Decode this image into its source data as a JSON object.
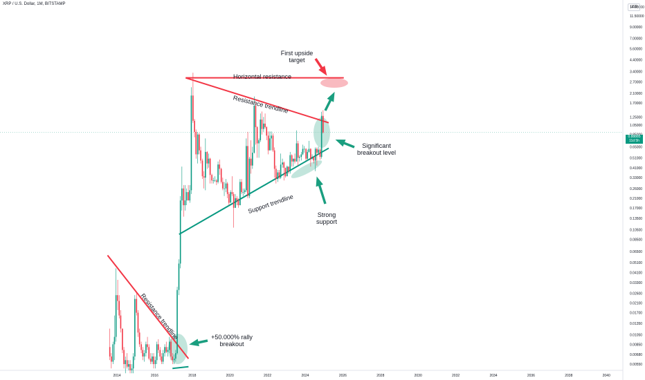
{
  "header": {
    "title": "XRP / U.S. Dollar, 1M, BITSTAMP",
    "currency": "USD"
  },
  "last_price": {
    "value": "0.88885",
    "countdown": "11d 5h"
  },
  "chart_data": {
    "type": "candlestick",
    "title": "XRP / U.S. Dollar, 1M, BITSTAMP",
    "scale": "log",
    "x_range": [
      2013.5,
      2040.5
    ],
    "y_range": [
      0.0045,
      20
    ],
    "price_ticks": [
      "14.00000",
      "11.50000",
      "9.00000",
      "7.00000",
      "5.60000",
      "4.40000",
      "3.40000",
      "2.70000",
      "2.10000",
      "1.70000",
      "1.25000",
      "1.05000",
      "0.85000",
      "0.65000",
      "0.51000",
      "0.41000",
      "0.33000",
      "0.26000",
      "0.21000",
      "0.17000",
      "0.13500",
      "0.10500",
      "0.08500",
      "0.06500",
      "0.05100",
      "0.04100",
      "0.03300",
      "0.02600",
      "0.02100",
      "0.01700",
      "0.01350",
      "0.01050",
      "0.00850",
      "0.00680",
      "0.00550"
    ],
    "time_ticks": [
      "2014",
      "2016",
      "2018",
      "2020",
      "2022",
      "2024",
      "2026",
      "2028",
      "2030",
      "2032",
      "2034",
      "2036",
      "2038",
      "2040"
    ],
    "candles": [
      [
        2013.62,
        0.008,
        0.012,
        0.006,
        0.0065
      ],
      [
        2013.7,
        0.0065,
        0.007,
        0.005,
        0.0058
      ],
      [
        2013.79,
        0.0058,
        0.009,
        0.0055,
        0.0085
      ],
      [
        2013.87,
        0.0085,
        0.016,
        0.006,
        0.01
      ],
      [
        2013.95,
        0.01,
        0.045,
        0.009,
        0.025
      ],
      [
        2014.04,
        0.025,
        0.035,
        0.018,
        0.022
      ],
      [
        2014.12,
        0.022,
        0.025,
        0.015,
        0.016
      ],
      [
        2014.2,
        0.016,
        0.018,
        0.011,
        0.012
      ],
      [
        2014.29,
        0.012,
        0.012,
        0.007,
        0.0075
      ],
      [
        2014.37,
        0.0075,
        0.008,
        0.005,
        0.0055
      ],
      [
        2014.45,
        0.0055,
        0.0065,
        0.0045,
        0.006
      ],
      [
        2014.54,
        0.006,
        0.007,
        0.005,
        0.0052
      ],
      [
        2014.62,
        0.0052,
        0.006,
        0.0048,
        0.0055
      ],
      [
        2014.7,
        0.0055,
        0.006,
        0.0045,
        0.0048
      ],
      [
        2014.79,
        0.0048,
        0.0055,
        0.0045,
        0.005
      ],
      [
        2014.87,
        0.005,
        0.007,
        0.0045,
        0.0065
      ],
      [
        2014.95,
        0.0065,
        0.025,
        0.006,
        0.023
      ],
      [
        2015.04,
        0.023,
        0.026,
        0.016,
        0.017
      ],
      [
        2015.12,
        0.017,
        0.018,
        0.01,
        0.011
      ],
      [
        2015.2,
        0.011,
        0.012,
        0.008,
        0.0085
      ],
      [
        2015.29,
        0.0085,
        0.009,
        0.007,
        0.0075
      ],
      [
        2015.37,
        0.0075,
        0.008,
        0.006,
        0.0065
      ],
      [
        2015.45,
        0.0065,
        0.0075,
        0.0058,
        0.007
      ],
      [
        2015.54,
        0.007,
        0.009,
        0.0065,
        0.0085
      ],
      [
        2015.62,
        0.0085,
        0.01,
        0.0075,
        0.008
      ],
      [
        2015.7,
        0.008,
        0.0085,
        0.006,
        0.0062
      ],
      [
        2015.79,
        0.0062,
        0.007,
        0.0055,
        0.0058
      ],
      [
        2015.87,
        0.0058,
        0.007,
        0.0055,
        0.0065
      ],
      [
        2015.95,
        0.0065,
        0.007,
        0.005,
        0.0055
      ],
      [
        2016.04,
        0.0055,
        0.0065,
        0.005,
        0.006
      ],
      [
        2016.12,
        0.006,
        0.009,
        0.0055,
        0.0085
      ],
      [
        2016.2,
        0.0085,
        0.0095,
        0.007,
        0.0075
      ],
      [
        2016.29,
        0.0075,
        0.008,
        0.006,
        0.0065
      ],
      [
        2016.37,
        0.0065,
        0.007,
        0.0055,
        0.0058
      ],
      [
        2016.45,
        0.0058,
        0.0075,
        0.0055,
        0.007
      ],
      [
        2016.54,
        0.007,
        0.0085,
        0.0065,
        0.008
      ],
      [
        2016.62,
        0.008,
        0.009,
        0.007,
        0.0072
      ],
      [
        2016.7,
        0.0072,
        0.008,
        0.0065,
        0.0075
      ],
      [
        2016.79,
        0.0075,
        0.01,
        0.007,
        0.009
      ],
      [
        2016.87,
        0.009,
        0.0095,
        0.006,
        0.0065
      ],
      [
        2016.95,
        0.0065,
        0.007,
        0.0055,
        0.006
      ],
      [
        2017.04,
        0.006,
        0.0068,
        0.0055,
        0.0062
      ],
      [
        2017.12,
        0.0062,
        0.0075,
        0.0058,
        0.007
      ],
      [
        2017.2,
        0.007,
        0.03,
        0.0068,
        0.028
      ],
      [
        2017.29,
        0.028,
        0.055,
        0.025,
        0.05
      ],
      [
        2017.37,
        0.05,
        0.22,
        0.045,
        0.2
      ],
      [
        2017.45,
        0.2,
        0.42,
        0.16,
        0.26
      ],
      [
        2017.54,
        0.26,
        0.28,
        0.14,
        0.18
      ],
      [
        2017.62,
        0.18,
        0.28,
        0.16,
        0.2
      ],
      [
        2017.7,
        0.2,
        0.26,
        0.18,
        0.24
      ],
      [
        2017.79,
        0.24,
        0.28,
        0.2,
        0.2
      ],
      [
        2017.87,
        0.2,
        0.28,
        0.19,
        0.25
      ],
      [
        2017.95,
        0.25,
        2.4,
        0.23,
        2.0
      ],
      [
        2018.04,
        2.0,
        3.3,
        1.1,
        1.15
      ],
      [
        2018.12,
        1.15,
        1.2,
        0.8,
        0.9
      ],
      [
        2018.2,
        0.9,
        0.95,
        0.5,
        0.55
      ],
      [
        2018.29,
        0.55,
        0.9,
        0.45,
        0.85
      ],
      [
        2018.37,
        0.85,
        0.88,
        0.55,
        0.6
      ],
      [
        2018.45,
        0.6,
        0.65,
        0.45,
        0.48
      ],
      [
        2018.54,
        0.48,
        0.5,
        0.32,
        0.34
      ],
      [
        2018.62,
        0.34,
        0.38,
        0.26,
        0.33
      ],
      [
        2018.7,
        0.33,
        0.78,
        0.25,
        0.58
      ],
      [
        2018.79,
        0.58,
        0.59,
        0.4,
        0.45
      ],
      [
        2018.87,
        0.45,
        0.56,
        0.41,
        0.5
      ],
      [
        2018.95,
        0.5,
        0.51,
        0.29,
        0.35
      ],
      [
        2019.04,
        0.35,
        0.36,
        0.29,
        0.31
      ],
      [
        2019.12,
        0.31,
        0.33,
        0.29,
        0.31
      ],
      [
        2019.2,
        0.31,
        0.34,
        0.3,
        0.31
      ],
      [
        2019.29,
        0.31,
        0.32,
        0.28,
        0.3
      ],
      [
        2019.37,
        0.3,
        0.47,
        0.29,
        0.44
      ],
      [
        2019.45,
        0.44,
        0.49,
        0.35,
        0.4
      ],
      [
        2019.54,
        0.4,
        0.41,
        0.29,
        0.3
      ],
      [
        2019.62,
        0.3,
        0.33,
        0.25,
        0.26
      ],
      [
        2019.7,
        0.26,
        0.3,
        0.22,
        0.26
      ],
      [
        2019.79,
        0.26,
        0.32,
        0.24,
        0.29
      ],
      [
        2019.87,
        0.29,
        0.3,
        0.21,
        0.23
      ],
      [
        2019.95,
        0.23,
        0.24,
        0.18,
        0.19
      ],
      [
        2020.04,
        0.19,
        0.25,
        0.19,
        0.24
      ],
      [
        2020.12,
        0.24,
        0.34,
        0.22,
        0.23
      ],
      [
        2020.2,
        0.23,
        0.24,
        0.11,
        0.17
      ],
      [
        2020.29,
        0.17,
        0.23,
        0.17,
        0.21
      ],
      [
        2020.37,
        0.21,
        0.22,
        0.18,
        0.2
      ],
      [
        2020.45,
        0.2,
        0.21,
        0.17,
        0.18
      ],
      [
        2020.54,
        0.18,
        0.32,
        0.18,
        0.3
      ],
      [
        2020.62,
        0.3,
        0.32,
        0.23,
        0.24
      ],
      [
        2020.7,
        0.24,
        0.26,
        0.22,
        0.24
      ],
      [
        2020.79,
        0.24,
        0.26,
        0.23,
        0.25
      ],
      [
        2020.87,
        0.25,
        0.78,
        0.24,
        0.66
      ],
      [
        2020.95,
        0.66,
        0.9,
        0.21,
        0.22
      ],
      [
        2021.04,
        0.22,
        0.52,
        0.21,
        0.5
      ],
      [
        2021.12,
        0.5,
        0.75,
        0.36,
        0.43
      ],
      [
        2021.2,
        0.43,
        0.65,
        0.4,
        0.57
      ],
      [
        2021.29,
        0.57,
        1.96,
        0.56,
        1.6
      ],
      [
        2021.37,
        1.6,
        1.75,
        0.68,
        1.0
      ],
      [
        2021.45,
        1.0,
        1.02,
        0.51,
        0.7
      ],
      [
        2021.54,
        0.7,
        0.78,
        0.51,
        0.75
      ],
      [
        2021.62,
        0.75,
        1.35,
        0.72,
        1.18
      ],
      [
        2021.7,
        1.18,
        1.41,
        0.85,
        0.96
      ],
      [
        2021.79,
        0.96,
        1.25,
        0.9,
        1.08
      ],
      [
        2021.87,
        1.08,
        1.35,
        0.97,
        1.0
      ],
      [
        2021.95,
        1.0,
        1.02,
        0.75,
        0.83
      ],
      [
        2022.04,
        0.83,
        0.91,
        0.55,
        0.6
      ],
      [
        2022.12,
        0.6,
        0.91,
        0.6,
        0.78
      ],
      [
        2022.2,
        0.78,
        0.91,
        0.6,
        0.83
      ],
      [
        2022.29,
        0.83,
        0.87,
        0.58,
        0.6
      ],
      [
        2022.37,
        0.6,
        0.64,
        0.33,
        0.4
      ],
      [
        2022.45,
        0.4,
        0.43,
        0.29,
        0.32
      ],
      [
        2022.54,
        0.32,
        0.39,
        0.3,
        0.37
      ],
      [
        2022.62,
        0.37,
        0.39,
        0.32,
        0.33
      ],
      [
        2022.7,
        0.33,
        0.56,
        0.32,
        0.44
      ],
      [
        2022.79,
        0.44,
        0.5,
        0.41,
        0.46
      ],
      [
        2022.87,
        0.46,
        0.47,
        0.31,
        0.41
      ],
      [
        2022.95,
        0.41,
        0.41,
        0.33,
        0.34
      ],
      [
        2023.04,
        0.34,
        0.43,
        0.34,
        0.42
      ],
      [
        2023.12,
        0.42,
        0.42,
        0.36,
        0.38
      ],
      [
        2023.2,
        0.38,
        0.58,
        0.36,
        0.54
      ],
      [
        2023.29,
        0.54,
        0.55,
        0.42,
        0.47
      ],
      [
        2023.37,
        0.47,
        0.5,
        0.42,
        0.5
      ],
      [
        2023.45,
        0.5,
        0.56,
        0.45,
        0.47
      ],
      [
        2023.54,
        0.47,
        0.93,
        0.47,
        0.7
      ],
      [
        2023.62,
        0.7,
        0.74,
        0.43,
        0.51
      ],
      [
        2023.7,
        0.51,
        0.54,
        0.47,
        0.52
      ],
      [
        2023.79,
        0.52,
        0.58,
        0.48,
        0.55
      ],
      [
        2023.87,
        0.55,
        0.68,
        0.54,
        0.62
      ],
      [
        2023.95,
        0.62,
        0.66,
        0.57,
        0.62
      ],
      [
        2024.04,
        0.62,
        0.63,
        0.48,
        0.5
      ],
      [
        2024.12,
        0.5,
        0.61,
        0.49,
        0.58
      ],
      [
        2024.2,
        0.58,
        0.74,
        0.57,
        0.62
      ],
      [
        2024.29,
        0.62,
        0.63,
        0.42,
        0.5
      ],
      [
        2024.37,
        0.5,
        0.55,
        0.49,
        0.52
      ],
      [
        2024.45,
        0.52,
        0.53,
        0.45,
        0.48
      ],
      [
        2024.54,
        0.48,
        0.64,
        0.38,
        0.62
      ],
      [
        2024.62,
        0.62,
        0.64,
        0.43,
        0.57
      ],
      [
        2024.7,
        0.57,
        0.65,
        0.55,
        0.61
      ],
      [
        2024.79,
        0.61,
        0.63,
        0.49,
        0.52
      ],
      [
        2024.87,
        0.52,
        1.4,
        0.5,
        1.28
      ],
      [
        2024.95,
        1.28,
        1.45,
        0.87,
        0.89
      ]
    ],
    "trendlines": [
      {
        "name": "Resistance trendline (2017-2024)",
        "color": "#f23645",
        "points": [
          [
            2017.65,
            2.95
          ],
          [
            2025.25,
            1.1
          ]
        ]
      },
      {
        "name": "Horizontal resistance",
        "color": "#f23645",
        "points": [
          [
            2017.65,
            2.95
          ],
          [
            2026.05,
            2.95
          ]
        ]
      },
      {
        "name": "Support trendline",
        "color": "#089981",
        "points": [
          [
            2017.3,
            0.095
          ],
          [
            2025.25,
            0.63
          ]
        ]
      },
      {
        "name": "Resistance trendline (2013-2017)",
        "color": "#f23645",
        "points": [
          [
            2013.5,
            0.06
          ],
          [
            2017.8,
            0.0062
          ]
        ]
      },
      {
        "name": "Base line 2017",
        "color": "#089981",
        "points": [
          [
            2016.95,
            0.005
          ],
          [
            2017.8,
            0.0052
          ]
        ]
      }
    ],
    "annotations": [
      {
        "text": [
          "First upside",
          "target"
        ]
      },
      {
        "text": [
          "Horizontal resistance"
        ]
      },
      {
        "text": [
          "Resistance trendline"
        ]
      },
      {
        "text": [
          "Significant",
          "breakout level"
        ]
      },
      {
        "text": [
          "Support trendline"
        ]
      },
      {
        "text": [
          "Strong",
          "support"
        ]
      },
      {
        "text": [
          "Resistance trendline"
        ]
      },
      {
        "text": [
          "+50.000% rally",
          "breakout"
        ]
      }
    ],
    "last_price_line": 0.88885,
    "colors": {
      "up": "#089981",
      "down": "#f23645",
      "ellipse_green": "#8fcfbf",
      "ellipse_red": "#f7a9b0"
    }
  }
}
